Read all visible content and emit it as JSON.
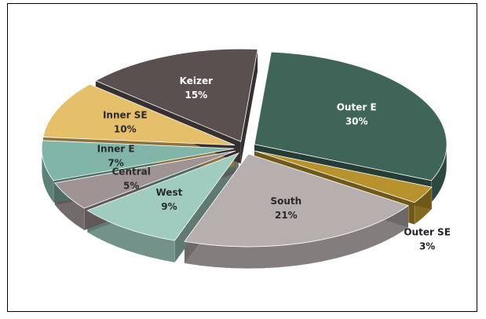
{
  "chart_data": {
    "type": "pie",
    "categories": [
      "Outer E",
      "Outer SE",
      "South",
      "West",
      "Central",
      "Inner E",
      "Inner SE",
      "Keizer"
    ],
    "values": [
      30,
      3,
      21,
      9,
      5,
      7,
      10,
      15
    ],
    "value_labels": [
      "30%",
      "3%",
      "21%",
      "9%",
      "5%",
      "7%",
      "10%",
      "15%"
    ],
    "colors": [
      "#3f6558",
      "#b8922c",
      "#b6afae",
      "#a0cbbf",
      "#9f9493",
      "#80b5a7",
      "#e6bf6a",
      "#5b5050"
    ]
  }
}
